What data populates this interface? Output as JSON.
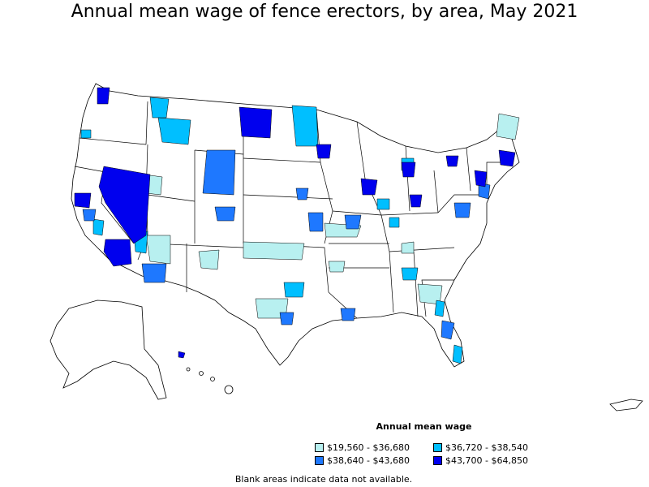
{
  "title": "Annual mean wage of fence erectors, by area, May 2021",
  "legend": {
    "title": "Annual mean wage",
    "items": [
      {
        "label": "$19,560 - $36,680",
        "color": "#b8f0f0"
      },
      {
        "label": "$36,720 - $38,540",
        "color": "#00bfff"
      },
      {
        "label": "$38,640 - $43,680",
        "color": "#1e78ff"
      },
      {
        "label": "$43,700 - $64,850",
        "color": "#0000ee"
      }
    ]
  },
  "note": "Blank areas indicate data not available."
}
